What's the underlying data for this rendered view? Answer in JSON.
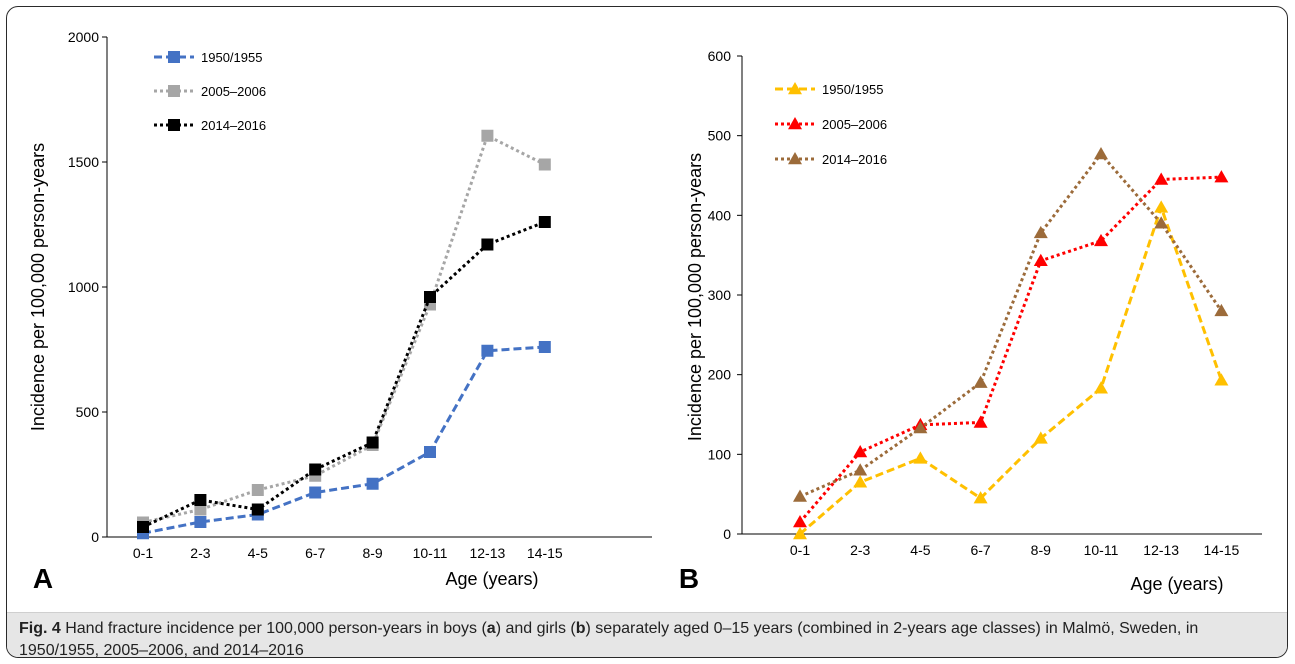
{
  "chart_data": [
    {
      "type": "line",
      "panel_label": "A",
      "xlabel": "Age (years)",
      "ylabel": "Incidence per 100,000 person-years",
      "categories": [
        "0-1",
        "2-3",
        "4-5",
        "6-7",
        "8-9",
        "10-11",
        "12-13",
        "14-15"
      ],
      "ylim": [
        0,
        2000
      ],
      "yticks": [
        0,
        500,
        1000,
        1500,
        2000
      ],
      "legend_position": "top-left",
      "grid": false,
      "marker": "square",
      "series": [
        {
          "name": "1950/1955",
          "color": "#4472c4",
          "dash": "dashed",
          "values": [
            15,
            60,
            90,
            178,
            213,
            340,
            745,
            760
          ]
        },
        {
          "name": "2005–2006",
          "color": "#a6a6a6",
          "dash": "dotted",
          "values": [
            58,
            110,
            188,
            245,
            368,
            930,
            1605,
            1490
          ]
        },
        {
          "name": "2014–2016",
          "color": "#000000",
          "dash": "dotted",
          "values": [
            40,
            148,
            110,
            270,
            378,
            960,
            1170,
            1260
          ]
        }
      ]
    },
    {
      "type": "line",
      "panel_label": "B",
      "xlabel": "Age (years)",
      "ylabel": "Incidence per 100,000 person-years",
      "categories": [
        "0-1",
        "2-3",
        "4-5",
        "6-7",
        "8-9",
        "10-11",
        "12-13",
        "14-15"
      ],
      "ylim": [
        0,
        600
      ],
      "yticks": [
        0,
        100,
        200,
        300,
        400,
        500,
        600
      ],
      "legend_position": "top-left",
      "grid": false,
      "marker": "triangle",
      "series": [
        {
          "name": "1950/1955",
          "color": "#ffc000",
          "dash": "dashed",
          "values": [
            0,
            65,
            95,
            45,
            120,
            183,
            410,
            193
          ]
        },
        {
          "name": "2005–2006",
          "color": "#ff0000",
          "dash": "dotted",
          "values": [
            15,
            103,
            137,
            140,
            343,
            368,
            445,
            448
          ]
        },
        {
          "name": "2014–2016",
          "color": "#9c6b3a",
          "dash": "dotted",
          "values": [
            47,
            80,
            133,
            190,
            378,
            477,
            390,
            280
          ]
        }
      ]
    }
  ],
  "caption": {
    "fig_label": "Fig. 4",
    "parts": [
      " Hand fracture incidence per 100,000 person-years in boys (",
      "a",
      ") and girls (",
      "b",
      ") separately aged 0–15 years (combined in 2-years age classes) in Malmö, Sweden, in 1950/1955, 2005–2006, and 2014–2016"
    ]
  }
}
